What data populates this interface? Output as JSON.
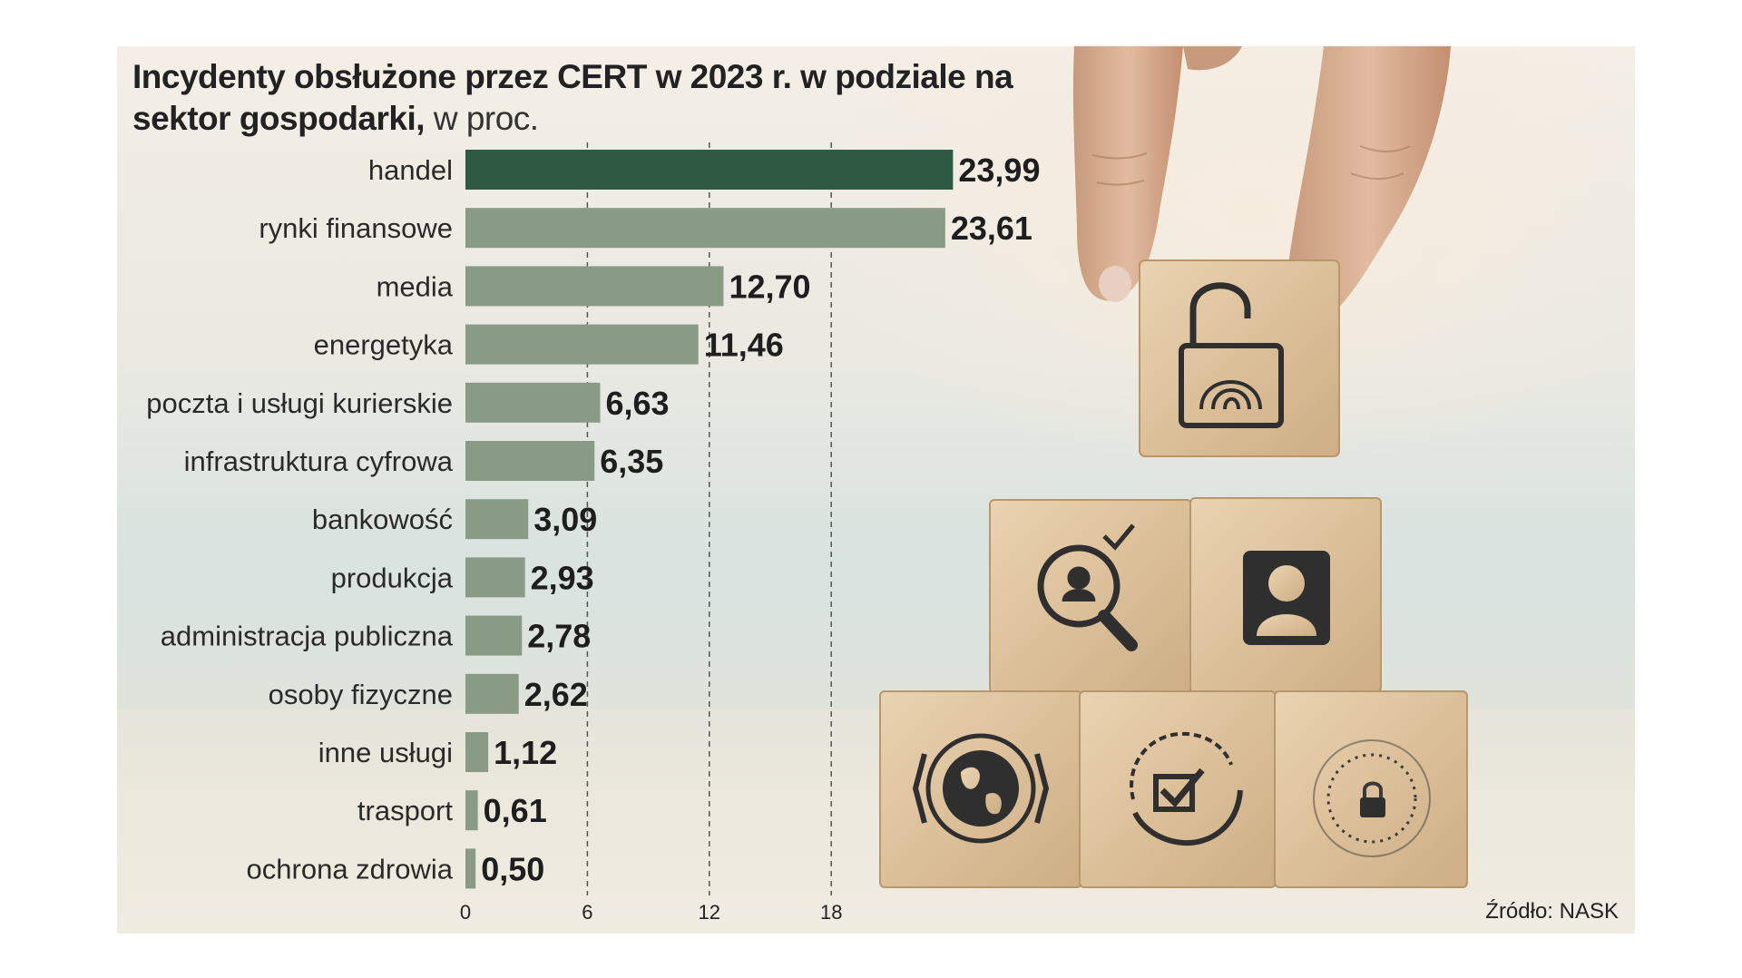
{
  "title_bold": "Incydenty obsłużone przez CERT w 2023 r. w podziale na sektor gospodarki,",
  "title_rest": "w proc.",
  "source": "Źródło: NASK",
  "colors": {
    "highlight_bar": "#2e5a44",
    "bar": "#8a9b85",
    "grid": "#555555",
    "accent_bg": "#f4eee6"
  },
  "icons": [
    "padlock-fingerprint-icon",
    "search-person-icon",
    "user-profile-icon",
    "globe-icon",
    "checkbox-cycle-icon",
    "lock-dial-icon"
  ],
  "chart_data": {
    "type": "bar",
    "orientation": "horizontal",
    "title": "Incydenty obsłużone przez CERT w 2023 r. w podziale na sektor gospodarki, w proc.",
    "categories": [
      "handel",
      "rynki finansowe",
      "media",
      "energetyka",
      "poczta i usługi kurierskie",
      "infrastruktura cyfrowa",
      "bankowość",
      "produkcja",
      "administracja publiczna",
      "osoby fizyczne",
      "inne usługi",
      "trasport",
      "ochrona zdrowia"
    ],
    "values": [
      23.99,
      23.61,
      12.7,
      11.46,
      6.63,
      6.35,
      3.09,
      2.93,
      2.78,
      2.62,
      1.12,
      0.61,
      0.5
    ],
    "value_labels": [
      "23,99",
      "23,61",
      "12,70",
      "11,46",
      "6,63",
      "6,35",
      "3,09",
      "2,93",
      "2,78",
      "2,62",
      "1,12",
      "0,61",
      "0,50"
    ],
    "highlight_index": 0,
    "xticks": [
      0,
      6,
      12,
      18
    ],
    "xtick_labels": [
      "0",
      "6",
      "12",
      "18"
    ],
    "xlim": [
      0,
      24
    ],
    "xlabel": "",
    "ylabel": "",
    "grid": "vertical dashed",
    "legend": "none"
  }
}
